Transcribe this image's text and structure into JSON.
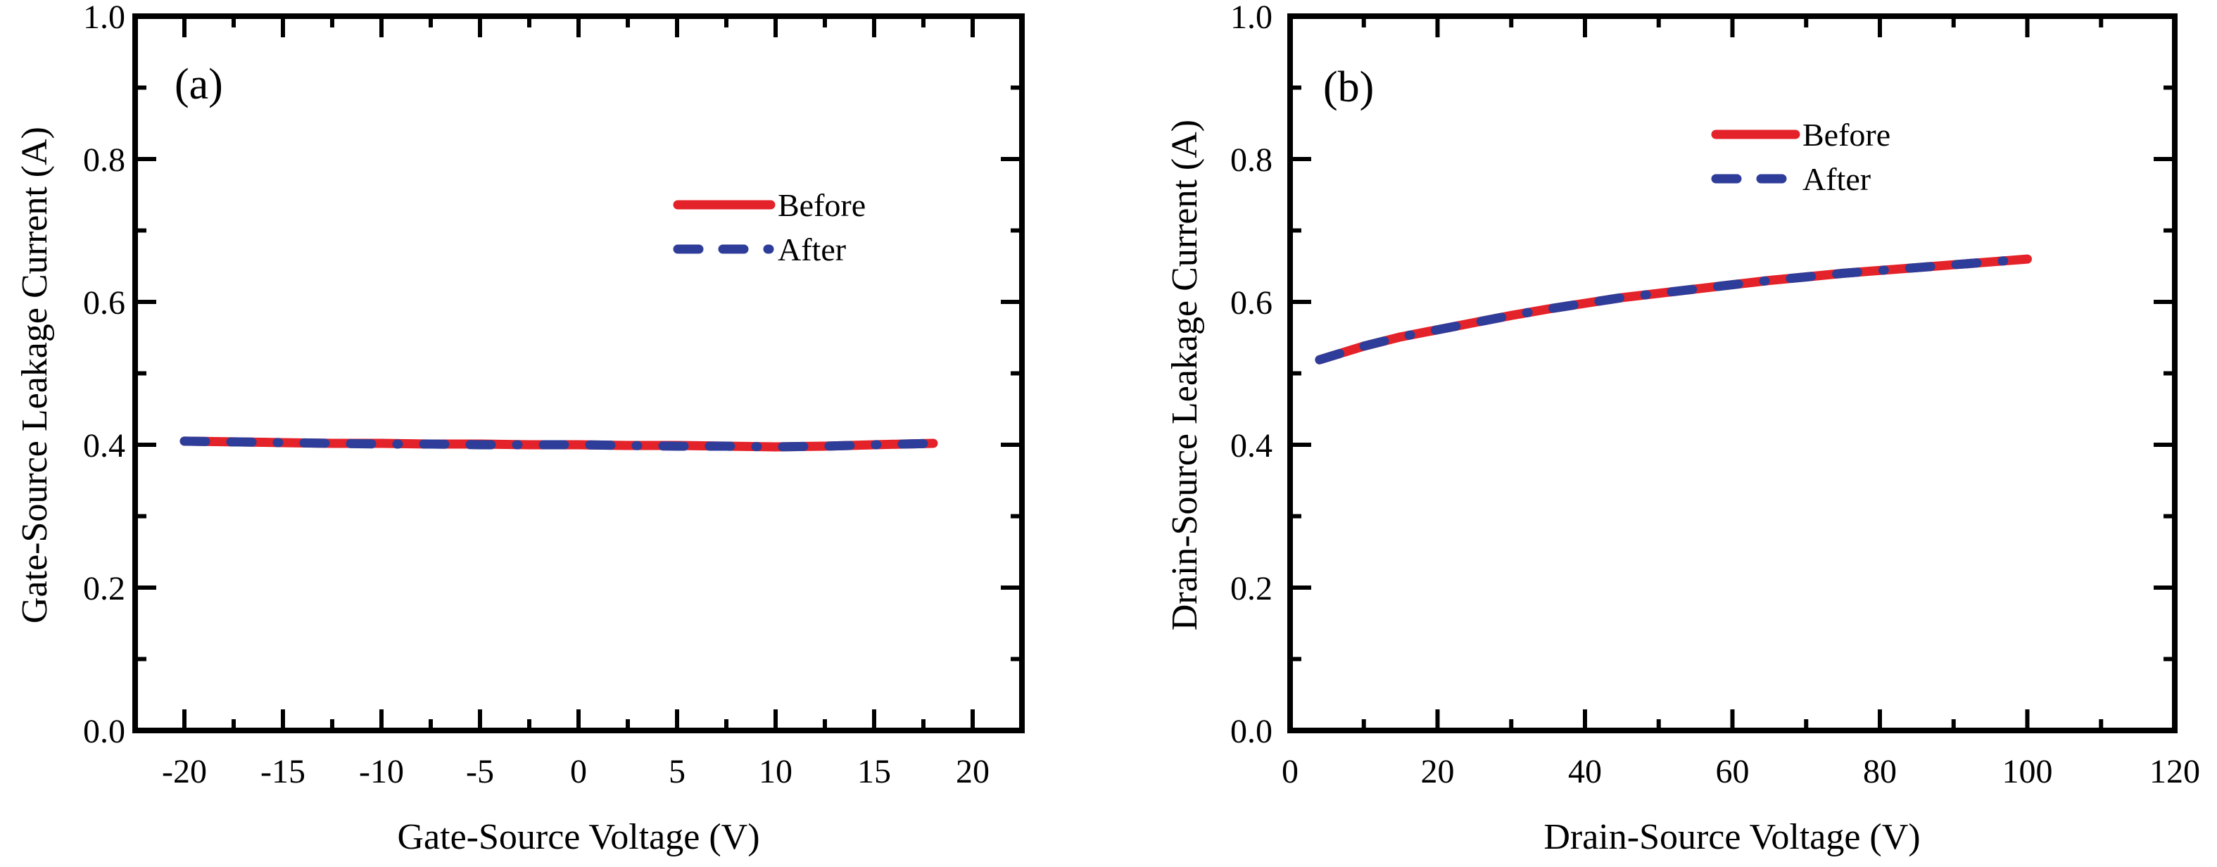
{
  "figure": {
    "background": "#ffffff",
    "colors": {
      "before": "#e42229",
      "after": "#2e3d99",
      "axis": "#000000",
      "text": "#000000"
    }
  },
  "chart_data": [
    {
      "type": "line",
      "panel_label": "(a)",
      "xlabel": "Gate-Source Voltage (V)",
      "ylabel": "Gate-Source Leakage Current (A)",
      "xlim": [
        -22.5,
        22.5
      ],
      "ylim": [
        0,
        1.0
      ],
      "x_major_ticks": [
        -20,
        -15,
        -10,
        -5,
        0,
        5,
        10,
        15,
        20
      ],
      "x_tick_labels": [
        "-20",
        "-15",
        "-10",
        "-5",
        "0",
        "5",
        "10",
        "15",
        "20"
      ],
      "x_minor_step": 2.5,
      "y_major_ticks": [
        0,
        0.2,
        0.4,
        0.6,
        0.8,
        1.0
      ],
      "y_tick_labels": [
        "0.0",
        "0.2",
        "0.4",
        "0.6",
        "0.8",
        "1.0"
      ],
      "y_minor_step": 0.1,
      "grid": false,
      "legend_position": "inside upper right area",
      "series": [
        {
          "name": "Before",
          "style": "solid",
          "color": "#e42229",
          "x": [
            -20,
            -17.5,
            -15,
            -12.5,
            -10,
            -7.5,
            -5,
            -2.5,
            0,
            2.5,
            5,
            7.5,
            10,
            12.5,
            15,
            16.5,
            18
          ],
          "y": [
            0.405,
            0.404,
            0.403,
            0.402,
            0.402,
            0.401,
            0.401,
            0.4,
            0.4,
            0.399,
            0.399,
            0.398,
            0.397,
            0.398,
            0.4,
            0.401,
            0.402
          ]
        },
        {
          "name": "After",
          "style": "dash-dash-dot",
          "color": "#2e3d99",
          "x": [
            -20,
            -17.5,
            -15,
            -12.5,
            -10,
            -7.5,
            -5,
            -2.5,
            0,
            2.5,
            5,
            7.5,
            10,
            12.5,
            15,
            16.5,
            18
          ],
          "y": [
            0.405,
            0.404,
            0.403,
            0.402,
            0.401,
            0.401,
            0.4,
            0.4,
            0.4,
            0.399,
            0.398,
            0.398,
            0.397,
            0.398,
            0.4,
            0.401,
            0.402
          ]
        }
      ]
    },
    {
      "type": "line",
      "panel_label": "(b)",
      "xlabel": "Drain-Source Voltage (V)",
      "ylabel": "Drain-Source Leakage Current (A)",
      "xlim": [
        0,
        120
      ],
      "ylim": [
        0,
        1.0
      ],
      "x_major_ticks": [
        0,
        20,
        40,
        60,
        80,
        100,
        120
      ],
      "x_tick_labels": [
        "0",
        "20",
        "40",
        "60",
        "80",
        "100",
        "120"
      ],
      "x_minor_step": 10,
      "y_major_ticks": [
        0,
        0.2,
        0.4,
        0.6,
        0.8,
        1.0
      ],
      "y_tick_labels": [
        "0.0",
        "0.2",
        "0.4",
        "0.6",
        "0.8",
        "1.0"
      ],
      "y_minor_step": 0.1,
      "grid": false,
      "legend_position": "inside upper center-right area",
      "series": [
        {
          "name": "Before",
          "style": "solid",
          "color": "#e42229",
          "x": [
            4,
            10,
            15,
            20,
            25,
            30,
            35,
            40,
            45,
            50,
            55,
            60,
            65,
            70,
            75,
            80,
            85,
            90,
            95,
            100
          ],
          "y": [
            0.519,
            0.538,
            0.551,
            0.561,
            0.571,
            0.581,
            0.59,
            0.598,
            0.606,
            0.612,
            0.618,
            0.624,
            0.63,
            0.635,
            0.64,
            0.644,
            0.648,
            0.652,
            0.656,
            0.66
          ]
        },
        {
          "name": "After",
          "style": "dash-dash-dot",
          "color": "#2e3d99",
          "x": [
            4,
            10,
            15,
            20,
            25,
            30,
            35,
            40,
            45,
            50,
            55,
            60,
            65,
            70,
            75,
            80,
            85,
            90,
            95,
            100
          ],
          "y": [
            0.519,
            0.538,
            0.551,
            0.561,
            0.571,
            0.581,
            0.59,
            0.598,
            0.606,
            0.612,
            0.618,
            0.624,
            0.63,
            0.635,
            0.64,
            0.644,
            0.648,
            0.652,
            0.656,
            0.66
          ]
        }
      ]
    }
  ]
}
